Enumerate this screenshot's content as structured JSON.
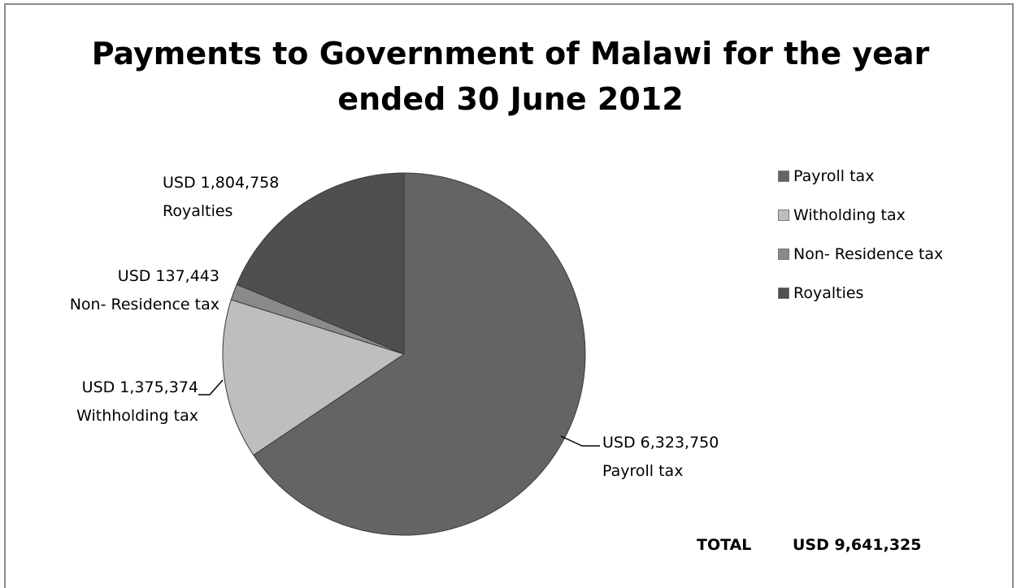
{
  "chart_data": {
    "type": "pie",
    "title_lines": [
      "Payments to Government of Malawi for the year",
      "ended 30 June 2012"
    ],
    "slices": [
      {
        "label": "Payroll tax",
        "value": 6323750,
        "value_text": "USD 6,323,750",
        "data_label": "Payroll tax",
        "color": "#646464"
      },
      {
        "label": "Witholding tax",
        "value": 1375374,
        "value_text": "USD 1,375,374",
        "data_label": "Withholding tax",
        "color": "#bebebe"
      },
      {
        "label": "Non- Residence tax",
        "value": 137443,
        "value_text": "USD 137,443",
        "data_label": "Non- Residence tax",
        "color": "#8a8a8a"
      },
      {
        "label": "Royalties",
        "value": 1804758,
        "value_text": "USD 1,804,758",
        "data_label": "Royalties",
        "color": "#4f4f4f"
      }
    ],
    "legend_position": "right",
    "total": {
      "label": "TOTAL",
      "value_text": "USD 9,641,325",
      "value": 9641325
    }
  }
}
